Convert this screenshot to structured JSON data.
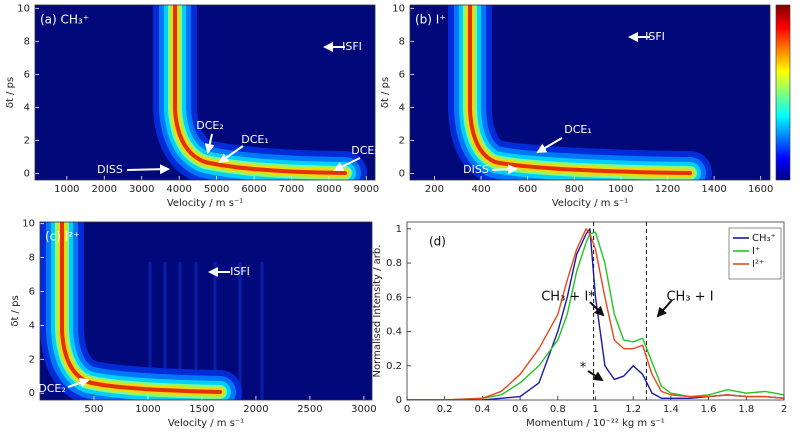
{
  "chart_data": [
    {
      "type": "heatmap",
      "title": "(a) CH₃⁺",
      "xlabel": "Velocity / m s⁻¹",
      "ylabel": "δt / ps",
      "xlim": [
        150,
        9230
      ],
      "xticks": [
        1000,
        2000,
        3000,
        4000,
        5000,
        6000,
        7000,
        8000,
        9000
      ],
      "ylim": [
        -0.4,
        10.2
      ],
      "yticks": [
        0,
        2,
        4,
        6,
        8,
        10
      ],
      "annotations": [
        "ISFI",
        "DCE₂",
        "DCE₁",
        "DCE₂",
        "DISS"
      ]
    },
    {
      "type": "heatmap",
      "title": "(b) I⁺",
      "xlabel": "Velocity / m s⁻¹",
      "ylabel": "δt / ps",
      "xlim": [
        95,
        1640
      ],
      "xticks": [
        200,
        400,
        600,
        800,
        1000,
        1200,
        1400,
        1600
      ],
      "ylim": [
        -0.4,
        10.2
      ],
      "yticks": [
        0,
        2,
        4,
        6,
        8,
        10
      ],
      "annotations": [
        "ISFI",
        "DCE₁",
        "DISS"
      ]
    },
    {
      "type": "heatmap",
      "title": "(c) I²⁺",
      "xlabel": "Velocity / m s⁻¹",
      "ylabel": "δt / ps",
      "xlim": [
        0,
        3075
      ],
      "xticks": [
        500,
        1000,
        1500,
        2000,
        2500,
        3000
      ],
      "ylim": [
        -0.4,
        10.1
      ],
      "yticks": [
        0,
        2,
        4,
        6,
        8,
        10
      ],
      "annotations": [
        "ISFI",
        "DCE₂"
      ]
    },
    {
      "type": "line",
      "title": "(d)",
      "xlabel": "Momentum / 10⁻²² kg m s⁻¹",
      "ylabel": "Normalised Intensity / arb.",
      "xlim": [
        0,
        2
      ],
      "xticks": [
        0,
        0.2,
        0.4,
        0.6,
        0.8,
        1,
        1.2,
        1.4,
        1.6,
        1.8,
        2
      ],
      "ylim": [
        0,
        1.04
      ],
      "yticks": [
        0,
        0.2,
        0.4,
        0.6,
        0.8,
        1
      ],
      "vlines": [
        0.99,
        1.27
      ],
      "annotations": [
        "CH₃ + I*",
        "CH₃ + I",
        "*"
      ],
      "x": [
        0,
        0.2,
        0.4,
        0.5,
        0.6,
        0.7,
        0.8,
        0.85,
        0.9,
        0.95,
        0.97,
        1.0,
        1.05,
        1.1,
        1.15,
        1.2,
        1.25,
        1.3,
        1.35,
        1.4,
        1.5,
        1.6,
        1.7,
        1.8,
        1.9,
        2.0
      ],
      "series": [
        {
          "name": "CH₃⁺",
          "color": "#1a1aa8",
          "values": [
            0,
            0,
            0,
            0.01,
            0.02,
            0.1,
            0.4,
            0.6,
            0.85,
            0.97,
            1.0,
            0.6,
            0.2,
            0.12,
            0.14,
            0.2,
            0.15,
            0.04,
            0.01,
            0.01,
            0.01,
            0.02,
            0.03,
            0.02,
            0.02,
            0.01
          ]
        },
        {
          "name": "I⁺",
          "color": "#22c422",
          "values": [
            0,
            0,
            0.01,
            0.03,
            0.1,
            0.2,
            0.35,
            0.5,
            0.75,
            0.92,
            0.97,
            0.98,
            0.8,
            0.5,
            0.35,
            0.34,
            0.36,
            0.22,
            0.08,
            0.04,
            0.02,
            0.03,
            0.06,
            0.04,
            0.05,
            0.03
          ]
        },
        {
          "name": "I²⁺",
          "color": "#e8481c",
          "values": [
            0,
            0,
            0.01,
            0.05,
            0.15,
            0.3,
            0.5,
            0.7,
            0.88,
            1.0,
            0.97,
            0.88,
            0.6,
            0.35,
            0.3,
            0.3,
            0.32,
            0.15,
            0.05,
            0.03,
            0.02,
            0.02,
            0.03,
            0.02,
            0.02,
            0.01
          ]
        }
      ]
    }
  ]
}
